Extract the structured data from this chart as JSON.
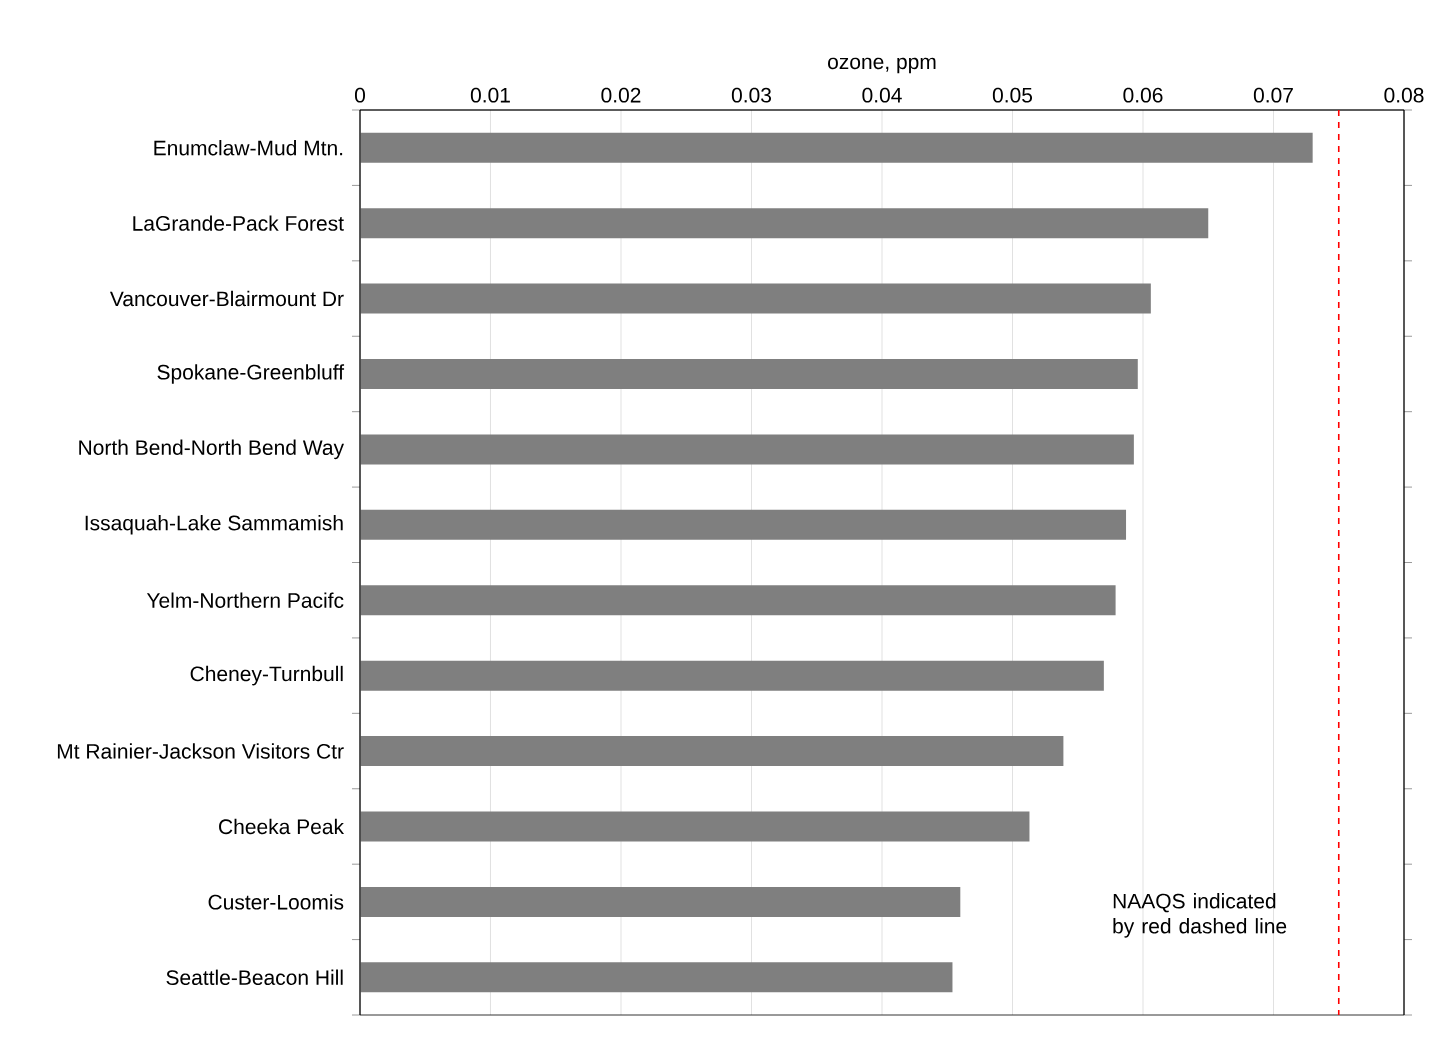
{
  "chart_data": {
    "type": "bar",
    "orientation": "horizontal",
    "xlabel": "ozone, ppm",
    "categories": [
      "Enumclaw-Mud Mtn.",
      "LaGrande-Pack Forest",
      "Vancouver-Blairmount Dr",
      "Spokane-Greenbluff",
      "North Bend-North Bend Way",
      "Issaquah-Lake Sammamish",
      "Yelm-Northern Pacifc",
      "Cheney-Turnbull",
      "Mt Rainier-Jackson Visitors Ctr",
      "Cheeka Peak",
      "Custer-Loomis",
      "Seattle-Beacon Hill"
    ],
    "values": [
      0.073,
      0.065,
      0.0606,
      0.0596,
      0.0593,
      0.0587,
      0.0579,
      0.057,
      0.0539,
      0.0513,
      0.046,
      0.0454
    ],
    "color": "#7f7f7f",
    "xlim": [
      0,
      0.08
    ],
    "xticks": [
      0,
      0.01,
      0.02,
      0.03,
      0.04,
      0.05,
      0.06,
      0.07,
      0.08
    ],
    "grid": "x",
    "ref_lines": [
      {
        "axis": "x",
        "value": 0.075,
        "color": "#ff0000",
        "line_style": "dashed"
      }
    ],
    "annotations": [
      "NAAQS indicated by red dashed line"
    ]
  }
}
